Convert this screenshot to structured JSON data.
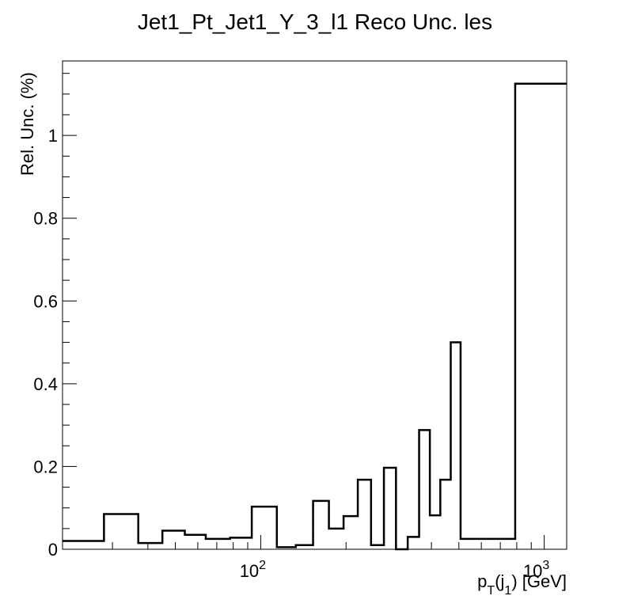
{
  "chart_data": {
    "type": "histogram",
    "title": "Jet1_Pt_Jet1_Y_3_l1 Reco Unc. les",
    "ylabel": "Rel. Unc. (%)",
    "xlabel": {
      "main": "p",
      "sub": "T",
      "mid": "(j",
      "sub2": "1",
      "tail": ") [GeV]"
    },
    "xscale": "log",
    "xlim": [
      20,
      1200
    ],
    "ylim": [
      0,
      1.18
    ],
    "y_ticks": [
      {
        "value": 0,
        "label": "0"
      },
      {
        "value": 0.2,
        "label": "0.2"
      },
      {
        "value": 0.4,
        "label": "0.4"
      },
      {
        "value": 0.6,
        "label": "0.6"
      },
      {
        "value": 0.8,
        "label": "0.8"
      },
      {
        "value": 1.0,
        "label": "1"
      }
    ],
    "x_ticks": [
      {
        "value": 100,
        "base": "10",
        "exp": "2"
      },
      {
        "value": 1000,
        "base": "10",
        "exp": "3"
      }
    ],
    "bin_edges": [
      20,
      24,
      28,
      37,
      45,
      54,
      64,
      78,
      93,
      114,
      133,
      153,
      174,
      196,
      220,
      245,
      272,
      300,
      330,
      362,
      395,
      430,
      468,
      507,
      548,
      592,
      638,
      686,
      737,
      790,
      846,
      905,
      967,
      1032,
      1101,
      1172,
      1200
    ],
    "values": [
      0.02,
      0.02,
      0.085,
      0.015,
      0.045,
      0.035,
      0.025,
      0.028,
      0.103,
      0.005,
      0.01,
      0.117,
      0.05,
      0.08,
      0.168,
      0.01,
      0.197,
      0.0,
      0.03,
      0.288,
      0.082,
      0.168,
      0.5,
      0.025,
      0.025,
      0.025,
      0.025,
      0.025,
      0.025,
      1.125,
      1.125,
      1.125,
      1.125,
      1.125,
      1.125,
      1.125
    ]
  }
}
